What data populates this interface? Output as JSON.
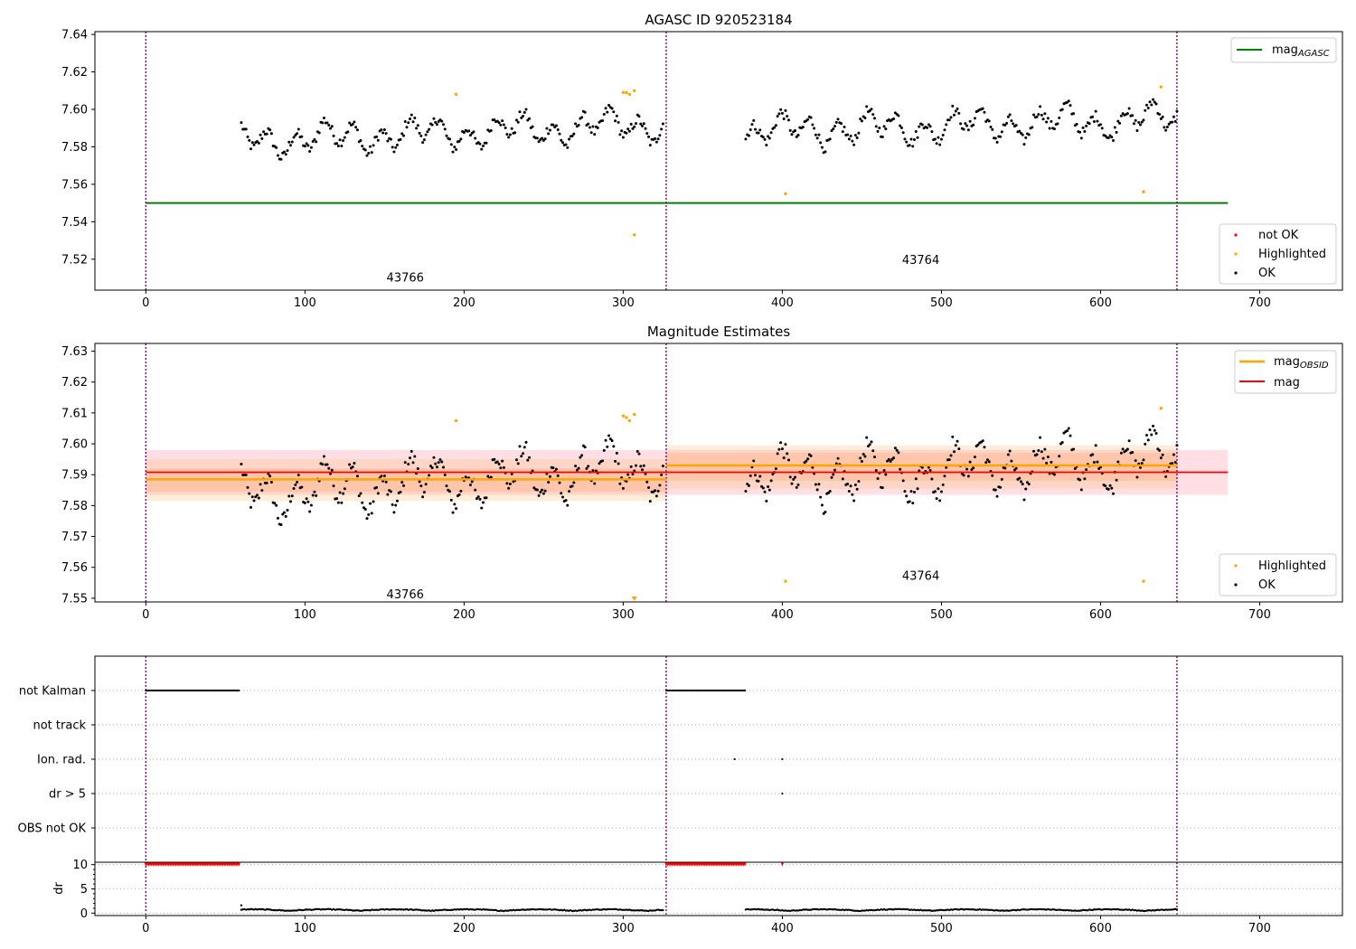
{
  "chart_data": [
    {
      "type": "scatter",
      "title": "AGASC ID 920523184",
      "xlim": [
        -32,
        752
      ],
      "ylim": [
        7.5035,
        7.6415
      ],
      "xticks": [
        0,
        100,
        200,
        300,
        400,
        500,
        600,
        700
      ],
      "yticks": [
        7.52,
        7.54,
        7.56,
        7.58,
        7.6,
        7.62,
        7.64
      ],
      "ytick_decimals": 2,
      "obs_boundaries": [
        0,
        327,
        648
      ],
      "obsid_labels": [
        {
          "text": "43766",
          "x": 163,
          "y": 7.5105
        },
        {
          "text": "43764",
          "x": 487,
          "y": 7.52
        }
      ],
      "reference_lines": [
        {
          "name": "mag_AGASC",
          "label": "mag",
          "sub": "AGASC",
          "color": "#008000",
          "x0": 0,
          "x1": 680,
          "y": 7.55
        }
      ],
      "series": [
        {
          "name": "OK",
          "color": "#000000"
        },
        {
          "name": "Highlighted",
          "color": "#FFA500",
          "x": [
            195,
            300,
            302,
            304,
            307,
            307,
            402,
            627,
            638
          ],
          "y": [
            7.608,
            7.609,
            7.609,
            7.608,
            7.61,
            7.533,
            7.555,
            7.556,
            7.612
          ]
        },
        {
          "name": "not OK",
          "color": "#FF0000",
          "x": [],
          "y": []
        }
      ],
      "legend_lines": {
        "position": "top-right"
      },
      "legend_points": {
        "position": "lower-right",
        "entries": [
          "not OK",
          "Highlighted",
          "OK"
        ]
      }
    },
    {
      "type": "scatter",
      "title": "Magnitude Estimates",
      "xlim": [
        -32,
        752
      ],
      "ylim": [
        7.5488,
        7.6325
      ],
      "xticks": [
        0,
        100,
        200,
        300,
        400,
        500,
        600,
        700
      ],
      "yticks": [
        7.55,
        7.56,
        7.57,
        7.58,
        7.59,
        7.6,
        7.61,
        7.62,
        7.63
      ],
      "ytick_decimals": 2,
      "obs_boundaries": [
        0,
        327,
        648
      ],
      "obsid_labels": [
        {
          "text": "43766",
          "x": 163,
          "y": 7.5515
        },
        {
          "text": "43764",
          "x": 487,
          "y": 7.5575
        }
      ],
      "bands": [
        {
          "x0": 0,
          "x1": 680,
          "y0": 7.5835,
          "y1": 7.598,
          "color": "#FF6F7F",
          "opacity": 0.22
        },
        {
          "x0": 0,
          "x1": 327,
          "y0": 7.5815,
          "y1": 7.595,
          "color": "#FFC080",
          "opacity": 0.3
        },
        {
          "x0": 0,
          "x1": 327,
          "y0": 7.5845,
          "y1": 7.592,
          "color": "#FF9050",
          "opacity": 0.22
        },
        {
          "x0": 327,
          "x1": 648,
          "y0": 7.5855,
          "y1": 7.5995,
          "color": "#FFC080",
          "opacity": 0.3
        },
        {
          "x0": 327,
          "x1": 648,
          "y0": 7.588,
          "y1": 7.597,
          "color": "#FF9050",
          "opacity": 0.22
        }
      ],
      "reference_lines": [
        {
          "name": "mag_OBSID_1",
          "color": "#FFA500",
          "x0": 0,
          "x1": 327,
          "y": 7.5885
        },
        {
          "name": "mag_OBSID_2",
          "color": "#FFA500",
          "x0": 327,
          "x1": 648,
          "y": 7.593
        },
        {
          "name": "mag",
          "color": "#FF0000",
          "x0": 0,
          "x1": 680,
          "y": 7.5908
        }
      ],
      "series": [
        {
          "name": "OK",
          "color": "#000000"
        },
        {
          "name": "Highlighted",
          "color": "#FFA500",
          "x": [
            195,
            300,
            302,
            304,
            307,
            402,
            627,
            638
          ],
          "y": [
            7.6075,
            7.609,
            7.6085,
            7.6075,
            7.6095,
            7.5555,
            7.5555,
            7.6115
          ]
        }
      ],
      "legend_lines": {
        "position": "top-right",
        "entries": [
          {
            "label": "mag",
            "sub": "OBSID",
            "color": "#FFA500"
          },
          {
            "label": "mag",
            "sub": "",
            "color": "#FF0000"
          }
        ]
      },
      "legend_points": {
        "position": "lower-right",
        "entries": [
          "Highlighted",
          "OK"
        ]
      }
    },
    {
      "type": "scatter",
      "xlim": [
        -32,
        752
      ],
      "xticks": [
        0,
        100,
        200,
        300,
        400,
        500,
        600,
        700
      ],
      "flag_rows": [
        "not Kalman",
        "not track",
        "Ion. rad.",
        "dr > 5",
        "OBS not OK"
      ],
      "flag_data": [
        {
          "row": "not Kalman",
          "ranges": [
            [
              0,
              59
            ],
            [
              327,
              377
            ]
          ],
          "points": []
        },
        {
          "row": "not track",
          "ranges": [],
          "points": []
        },
        {
          "row": "Ion. rad.",
          "ranges": [],
          "points": [
            370,
            400
          ]
        },
        {
          "row": "dr > 5",
          "ranges": [],
          "points": [
            400
          ]
        },
        {
          "row": "OBS not OK",
          "ranges": [],
          "points": []
        }
      ],
      "obs_boundaries": [
        0,
        327,
        648
      ]
    },
    {
      "type": "scatter",
      "ylabel": "dr",
      "xlim": [
        -32,
        752
      ],
      "ylim": [
        -0.5,
        10.5
      ],
      "xticks": [
        0,
        100,
        200,
        300,
        400,
        500,
        600,
        700
      ],
      "yticks": [
        0,
        5,
        10
      ],
      "ytick_decimals": 0,
      "clipped_markers": {
        "value": 10,
        "color": "#FF0000",
        "ranges": [
          [
            0,
            59
          ],
          [
            327,
            377
          ]
        ],
        "points": [
          400
        ]
      },
      "obs_boundaries": [
        0,
        327,
        648
      ]
    }
  ]
}
